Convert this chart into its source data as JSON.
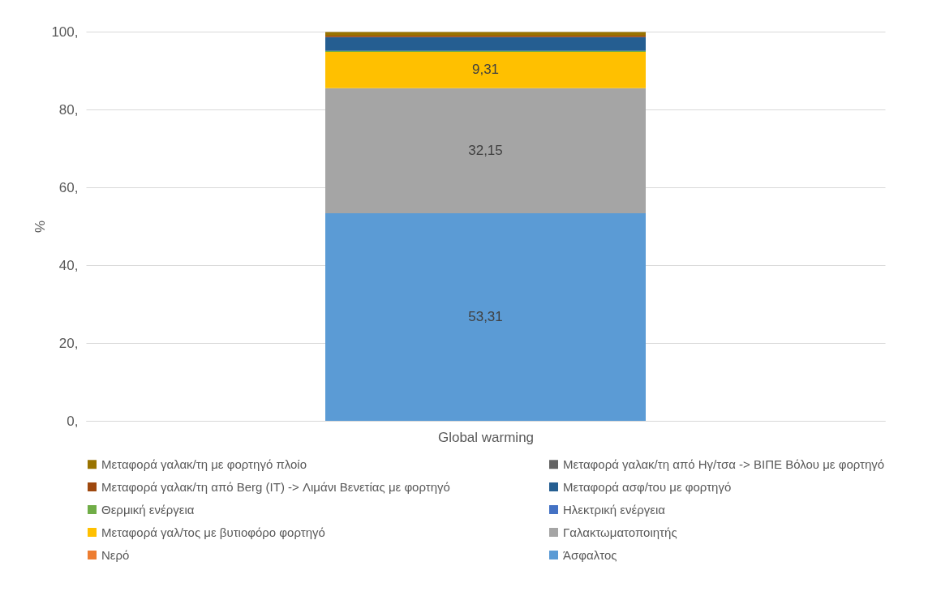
{
  "chart_data": {
    "type": "bar",
    "stacked": true,
    "ylabel": "%",
    "categories": [
      "Global warming"
    ],
    "series": [
      {
        "name": "Άσφαλτος",
        "color": "#5b9bd5",
        "values": [
          53.31
        ],
        "value_labels": [
          "53,31"
        ]
      },
      {
        "name": "Νερό",
        "color": "#ed7d31",
        "values": [
          null
        ]
      },
      {
        "name": "Γαλακτωματοποιητής",
        "color": "#a5a5a5",
        "values": [
          32.15
        ],
        "value_labels": [
          "32,15"
        ]
      },
      {
        "name": "Μεταφορά γαλ/τος με βυτιοφόρο φορτηγό",
        "color": "#ffc000",
        "values": [
          9.31
        ],
        "value_labels": [
          "9,31"
        ]
      },
      {
        "name": "Ηλεκτρική ενέργεια",
        "color": "#4472c4",
        "values": [
          null
        ]
      },
      {
        "name": "Θερμική ενέργεια",
        "color": "#70ad47",
        "values": [
          0.3
        ]
      },
      {
        "name": "Μεταφορά ασφ/του με φορτηγό",
        "color": "#255e91",
        "values": [
          3.5
        ]
      },
      {
        "name": "Μεταφορά γαλακ/τη από Berg (IT) -> Λιμάνι Βενετίας με φορτηγό",
        "color": "#9e480e",
        "values": [
          0.4
        ]
      },
      {
        "name": "Μεταφορά γαλακ/τη από Ηγ/τσα -> ΒΙΠΕ Βόλου με φορτηγό",
        "color": "#636363",
        "values": [
          null
        ]
      },
      {
        "name": "Μεταφορά γαλακ/τη με φορτηγό πλοίο",
        "color": "#997300",
        "values": [
          0.9
        ]
      }
    ],
    "ylim": [
      0,
      100
    ],
    "yticks": [
      {
        "value": 0,
        "label": "0,"
      },
      {
        "value": 20,
        "label": "20,"
      },
      {
        "value": 40,
        "label": "40,"
      },
      {
        "value": 60,
        "label": "60,"
      },
      {
        "value": 80,
        "label": "80,"
      },
      {
        "value": 100,
        "label": "100,"
      }
    ],
    "grid": "y",
    "legend": "bottom"
  }
}
